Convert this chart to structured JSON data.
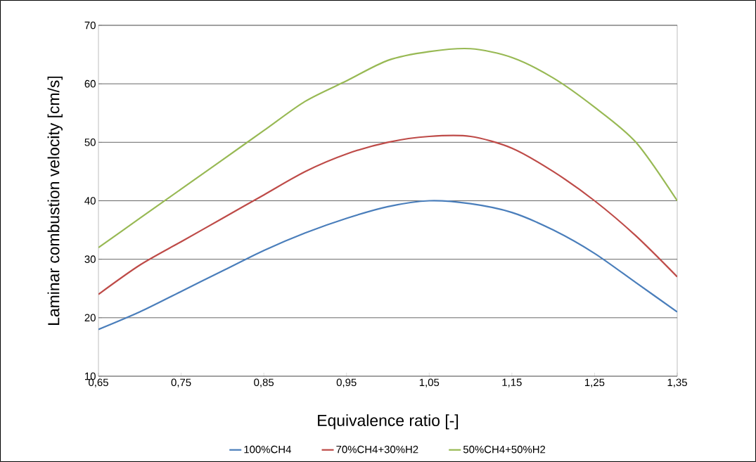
{
  "chart_data": {
    "type": "line",
    "xlabel": "Equivalence ratio [-]",
    "ylabel": "Laminar combustion velocity [cm/s]",
    "x": [
      0.65,
      0.7,
      0.75,
      0.8,
      0.85,
      0.9,
      0.95,
      1.0,
      1.05,
      1.1,
      1.15,
      1.2,
      1.25,
      1.3,
      1.35
    ],
    "series": [
      {
        "name": "100%CH4",
        "color": "#4a7ebb",
        "values": [
          18,
          21,
          24.5,
          28,
          31.5,
          34.5,
          37,
          39,
          40,
          39.5,
          38,
          35,
          31,
          26,
          21
        ]
      },
      {
        "name": "70%CH4+30%H2",
        "color": "#be4b48",
        "values": [
          24,
          29,
          33,
          37,
          41,
          45,
          48,
          50,
          51,
          51,
          49,
          45,
          40,
          34,
          27
        ]
      },
      {
        "name": "50%CH4+50%H2",
        "color": "#98b954",
        "values": [
          32,
          37,
          42,
          47,
          52,
          57,
          60.5,
          64,
          65.5,
          66,
          64.5,
          61,
          56,
          50,
          40
        ]
      }
    ],
    "xlim": [
      0.65,
      1.35
    ],
    "xticks": [
      {
        "value": 0.65,
        "label": "0,65"
      },
      {
        "value": 0.75,
        "label": "0,75"
      },
      {
        "value": 0.85,
        "label": "0,85"
      },
      {
        "value": 0.95,
        "label": "0,95"
      },
      {
        "value": 1.05,
        "label": "1,05"
      },
      {
        "value": 1.15,
        "label": "1,15"
      },
      {
        "value": 1.25,
        "label": "1,25"
      },
      {
        "value": 1.35,
        "label": "1,35"
      }
    ],
    "ylim": [
      10,
      70
    ],
    "yticks": [
      10,
      20,
      30,
      40,
      50,
      60,
      70
    ],
    "grid": "y",
    "legend": "bottom",
    "line_style": "solid"
  }
}
